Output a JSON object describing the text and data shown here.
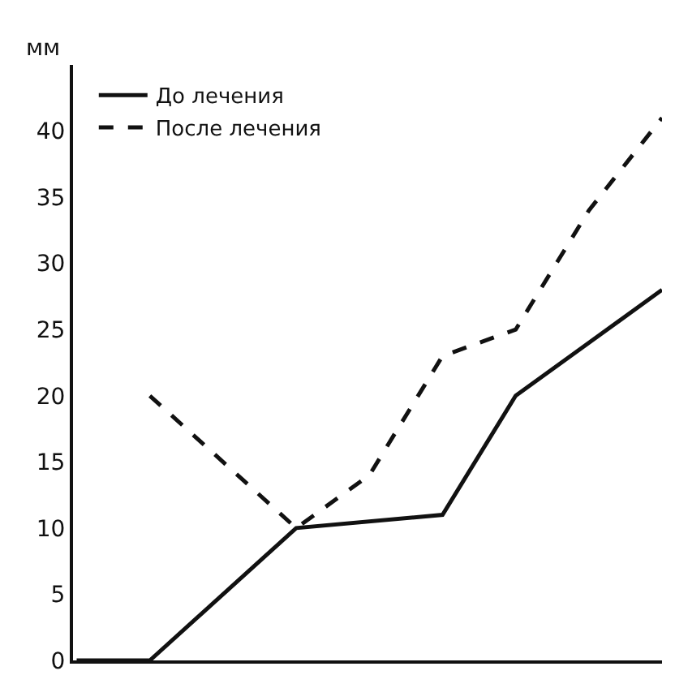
{
  "chart_data": {
    "type": "line",
    "ylabel": "мм",
    "categories": [
      null,
      null,
      null,
      null,
      null,
      null,
      null,
      null,
      null
    ],
    "series": [
      {
        "name": "До лечения",
        "color": "#111111",
        "line_style": "solid",
        "values": [
          0,
          0,
          null,
          10,
          null,
          11,
          20,
          24,
          28
        ]
      },
      {
        "name": "После лечения",
        "color": "#111111",
        "line_style": "dashed",
        "values": [
          null,
          20,
          null,
          10,
          14,
          23,
          25,
          34,
          41
        ]
      }
    ],
    "ylim": [
      0,
      45
    ],
    "yticks": [
      0,
      5,
      10,
      15,
      20,
      25,
      30,
      35,
      40
    ],
    "legend": "top left",
    "marker": "none"
  }
}
